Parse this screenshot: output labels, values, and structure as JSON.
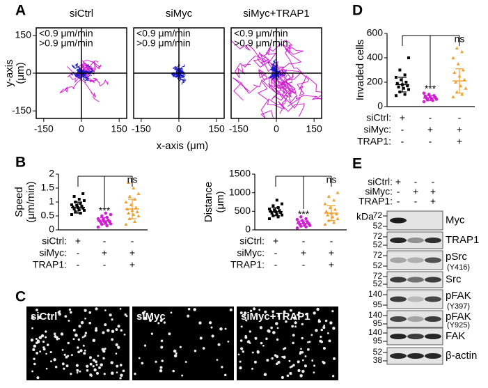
{
  "panel_a": {
    "label": "A",
    "x_label": "x-axis (μm)",
    "y_label": [
      "y-axis",
      "(μm)"
    ],
    "xlim": [
      -180,
      180
    ],
    "ylim": [
      -180,
      180
    ],
    "xticks": [
      -150,
      0,
      150
    ],
    "yticks": [
      -150,
      0,
      150
    ],
    "legend": [
      {
        "text": "<0.9 μm/min",
        "color": "#1a1ad0"
      },
      {
        "text": ">0.9 μm/min",
        "color": "#d020d0"
      }
    ],
    "plots": [
      {
        "title": "siCtrl"
      },
      {
        "title": "siMyc"
      },
      {
        "title": "siMyc+TRAP1"
      }
    ]
  },
  "panel_b": {
    "label": "B",
    "plots": [
      {
        "y_label": [
          "Speed",
          "(μm/min)"
        ],
        "ylim": [
          0,
          2
        ],
        "yticks": [
          0,
          0.5,
          1,
          1.5,
          2
        ],
        "groups": [
          {
            "color": "#000000",
            "marker": "square",
            "mean": 0.8,
            "sd": 0.2,
            "points": [
              0.55,
              0.6,
              0.65,
              0.7,
              0.72,
              0.75,
              0.78,
              0.8,
              0.82,
              0.85,
              0.88,
              0.9,
              0.95,
              1.0,
              1.05,
              1.1,
              1.2,
              1.3
            ]
          },
          {
            "color": "#d020d0",
            "marker": "circle",
            "mean": 0.32,
            "sd": 0.12,
            "significance": "***",
            "points": [
              0.1,
              0.15,
              0.2,
              0.22,
              0.25,
              0.28,
              0.3,
              0.3,
              0.33,
              0.35,
              0.38,
              0.4,
              0.45,
              0.5,
              0.55,
              0.6
            ]
          },
          {
            "color": "#f0a030",
            "marker": "triangle",
            "mean": 0.75,
            "sd": 0.35,
            "significance": "ns",
            "points": [
              0.2,
              0.3,
              0.4,
              0.5,
              0.55,
              0.6,
              0.65,
              0.7,
              0.75,
              0.8,
              0.9,
              1.0,
              1.1,
              1.2,
              1.3,
              1.5,
              1.7
            ]
          }
        ],
        "conditions": [
          {
            "label": "siCtrl:",
            "signs": [
              "+",
              "-",
              "-"
            ]
          },
          {
            "label": "siMyc:",
            "signs": [
              "-",
              "+",
              "+"
            ]
          },
          {
            "label": "TRAP1:",
            "signs": [
              "-",
              "-",
              "+"
            ]
          }
        ]
      },
      {
        "y_label": [
          "Distance",
          "(μm)"
        ],
        "ylim": [
          0,
          1500
        ],
        "yticks": [
          0,
          500,
          1000,
          1500
        ],
        "groups": [
          {
            "color": "#000000",
            "marker": "square",
            "mean": 490,
            "sd": 110,
            "points": [
              300,
              350,
              380,
              400,
              430,
              450,
              470,
              490,
              500,
              520,
              540,
              560,
              600,
              650,
              700,
              800
            ]
          },
          {
            "color": "#d020d0",
            "marker": "circle",
            "mean": 170,
            "sd": 70,
            "significance": "***",
            "points": [
              50,
              80,
              100,
              120,
              140,
              150,
              170,
              180,
              200,
              220,
              250,
              280,
              300,
              350
            ]
          },
          {
            "color": "#f0a030",
            "marker": "triangle",
            "mean": 450,
            "sd": 200,
            "significance": "ns",
            "points": [
              150,
              200,
              250,
              300,
              350,
              400,
              430,
              450,
              500,
              550,
              600,
              700,
              800,
              900,
              1000
            ]
          }
        ],
        "conditions": [
          {
            "label": "siCtrl:",
            "signs": [
              "+",
              "-",
              "-"
            ]
          },
          {
            "label": "siMyc:",
            "signs": [
              "-",
              "+",
              "+"
            ]
          },
          {
            "label": "TRAP1:",
            "signs": [
              "-",
              "-",
              "+"
            ]
          }
        ]
      }
    ]
  },
  "panel_c": {
    "label": "C",
    "images": [
      {
        "title": "siCtrl"
      },
      {
        "title": "siMyc"
      },
      {
        "title": "siMyc+TRAP1"
      }
    ]
  },
  "panel_d": {
    "label": "D",
    "plot": {
      "y_label": [
        "Invaded cells"
      ],
      "ylim": [
        0,
        600
      ],
      "yticks": [
        0,
        200,
        400,
        600
      ],
      "groups": [
        {
          "color": "#000000",
          "marker": "square",
          "mean": 180,
          "sd": 60,
          "points": [
            90,
            100,
            120,
            140,
            150,
            160,
            170,
            180,
            190,
            200,
            220,
            240,
            260,
            300,
            400
          ]
        },
        {
          "color": "#d020d0",
          "marker": "circle",
          "mean": 70,
          "sd": 20,
          "significance": "***",
          "points": [
            40,
            50,
            55,
            60,
            65,
            70,
            75,
            80,
            85,
            90,
            100,
            110
          ]
        },
        {
          "color": "#f0a030",
          "marker": "triangle",
          "mean": 210,
          "sd": 100,
          "significance": "ns",
          "points": [
            80,
            100,
            120,
            150,
            170,
            200,
            220,
            250,
            280,
            300,
            350,
            400,
            450,
            480
          ]
        }
      ],
      "conditions": [
        {
          "label": "siCtrl:",
          "signs": [
            "+",
            "-",
            "-"
          ]
        },
        {
          "label": "siMyc:",
          "signs": [
            "-",
            "+",
            "+"
          ]
        },
        {
          "label": "TRAP1:",
          "signs": [
            "-",
            "-",
            "+"
          ]
        }
      ]
    }
  },
  "panel_e": {
    "label": "E",
    "kda": "kDa",
    "conditions": [
      {
        "label": "siCtrl:",
        "signs": [
          "+",
          "-",
          "-"
        ]
      },
      {
        "label": "siMyc:",
        "signs": [
          "-",
          "+",
          "+"
        ]
      },
      {
        "label": "TRAP1:",
        "signs": [
          "-",
          "-",
          "+"
        ]
      }
    ],
    "rows": [
      {
        "name": "Myc",
        "markers": [
          72,
          52
        ]
      },
      {
        "name": "TRAP1",
        "markers": [
          72,
          52
        ]
      },
      {
        "name": "pSrc",
        "sub": "(Y416)",
        "markers": [
          72,
          52
        ]
      },
      {
        "name": "Src",
        "markers": [
          72,
          52
        ]
      },
      {
        "name": "pFAK",
        "sub": "(Y397)",
        "markers": [
          140,
          95
        ]
      },
      {
        "name": "pFAK",
        "sub": "(Y925)",
        "markers": [
          140,
          95
        ]
      },
      {
        "name": "FAK",
        "markers": [
          140,
          95
        ]
      },
      {
        "name": "β-actin",
        "markers": [
          52,
          38
        ]
      }
    ]
  }
}
